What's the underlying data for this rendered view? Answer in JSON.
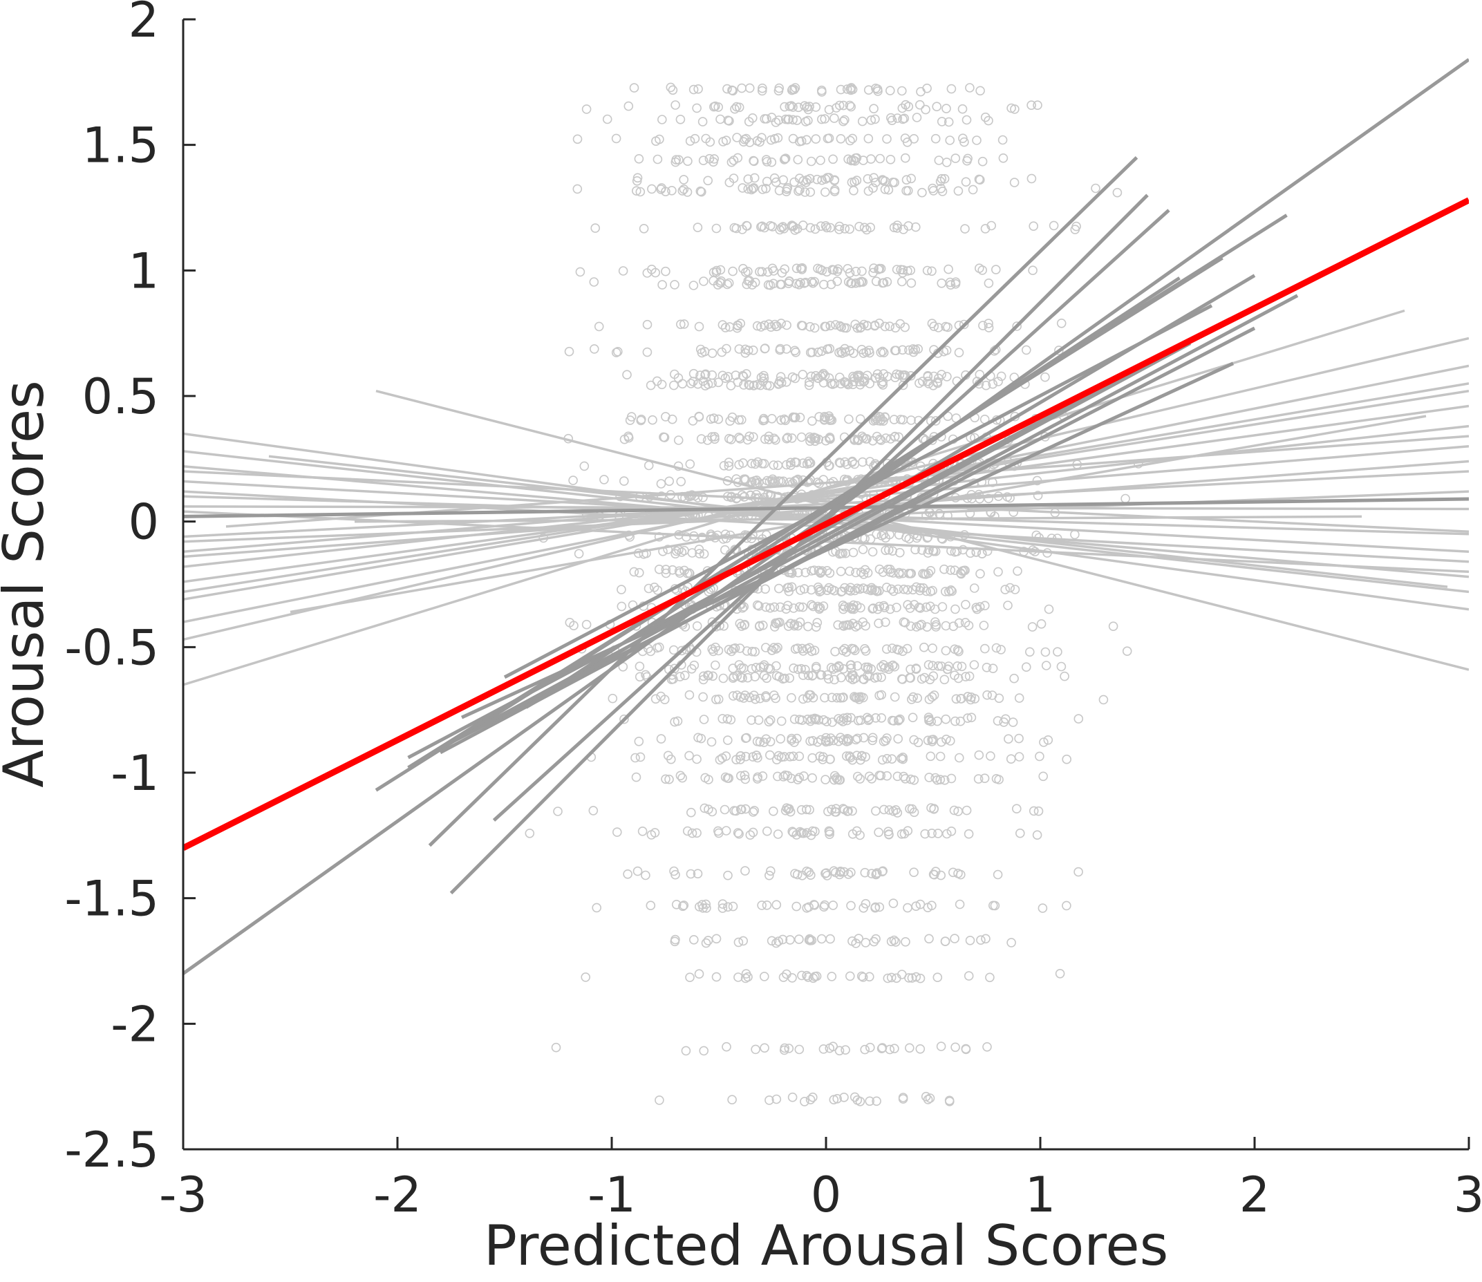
{
  "chart_data": {
    "type": "scatter",
    "title": "",
    "xlabel": "Predicted Arousal Scores",
    "ylabel": "Arousal Scores",
    "xlim": [
      -3,
      3
    ],
    "ylim": [
      -2.5,
      2
    ],
    "xticks": [
      -3,
      -2,
      -1,
      0,
      1,
      2,
      3
    ],
    "yticks": [
      -2.5,
      -2,
      -1.5,
      -1,
      -0.5,
      0,
      0.5,
      1,
      1.5,
      2
    ],
    "xtick_labels": [
      "-3",
      "-2",
      "-1",
      "0",
      "1",
      "2",
      "3"
    ],
    "ytick_labels": [
      "-2.5",
      "-2",
      "-1.5",
      "-1",
      "-0.5",
      "0",
      "0.5",
      "1",
      "1.5",
      "2"
    ],
    "grid": false,
    "legend": "none",
    "colors": {
      "points": "#c8c8c8",
      "light_fit_lines": "#c4c4c4",
      "dark_fit_lines": "#999999",
      "group_fit": "#ff0000",
      "axes": "#262626"
    },
    "score_levels": [
      -2.3,
      -2.1,
      -1.81,
      -1.67,
      -1.53,
      -1.4,
      -1.24,
      -1.15,
      -1.02,
      -0.94,
      -0.87,
      -0.79,
      -0.7,
      -0.62,
      -0.58,
      -0.51,
      -0.41,
      -0.34,
      -0.27,
      -0.2,
      -0.12,
      -0.06,
      0.03,
      0.1,
      0.16,
      0.23,
      0.33,
      0.41,
      0.55,
      0.58,
      0.68,
      0.78,
      0.95,
      1.0,
      1.17,
      1.32,
      1.36,
      1.44,
      1.52,
      1.6,
      1.65,
      1.72
    ],
    "scatter_summary": "individual ratings plotted against predicted scores; points cluster on discrete score levels, mostly between x = -1.8 and x = 1.7",
    "group_fit": {
      "name": "group fit",
      "color": "#ff0000",
      "x": [
        -3,
        3
      ],
      "y": [
        -1.3,
        1.28
      ]
    },
    "individual_fits": [
      {
        "tone": "dark",
        "x": [
          -3,
          3
        ],
        "y": [
          -1.8,
          1.84
        ]
      },
      {
        "tone": "dark",
        "x": [
          -3,
          3
        ],
        "y": [
          0.02,
          0.09
        ]
      },
      {
        "tone": "dark",
        "x": [
          -1.85,
          1.45
        ],
        "y": [
          -1.29,
          1.45
        ]
      },
      {
        "tone": "dark",
        "x": [
          -1.75,
          1.5
        ],
        "y": [
          -1.48,
          1.3
        ]
      },
      {
        "tone": "dark",
        "x": [
          -1.55,
          1.6
        ],
        "y": [
          -1.19,
          1.24
        ]
      },
      {
        "tone": "dark",
        "x": [
          -2.1,
          2.15
        ],
        "y": [
          -1.07,
          1.22
        ]
      },
      {
        "tone": "dark",
        "x": [
          -1.95,
          1.85
        ],
        "y": [
          -0.98,
          1.05
        ]
      },
      {
        "tone": "dark",
        "x": [
          -1.95,
          2.15
        ],
        "y": [
          -0.94,
          0.92
        ]
      },
      {
        "tone": "dark",
        "x": [
          -1.8,
          2.2
        ],
        "y": [
          -0.92,
          0.9
        ]
      },
      {
        "tone": "dark",
        "x": [
          -1.75,
          2.0
        ],
        "y": [
          -0.88,
          0.77
        ]
      },
      {
        "tone": "dark",
        "x": [
          -1.6,
          1.7
        ],
        "y": [
          -0.81,
          0.71
        ]
      },
      {
        "tone": "dark",
        "x": [
          -1.7,
          1.9
        ],
        "y": [
          -0.78,
          0.63
        ]
      },
      {
        "tone": "dark",
        "x": [
          -1.5,
          1.8
        ],
        "y": [
          -0.62,
          0.86
        ]
      },
      {
        "tone": "dark",
        "x": [
          -1.35,
          1.65
        ],
        "y": [
          -0.71,
          0.97
        ]
      },
      {
        "tone": "dark",
        "x": [
          -1.4,
          2.0
        ],
        "y": [
          -0.74,
          0.98
        ]
      },
      {
        "tone": "light",
        "x": [
          -2.1,
          3
        ],
        "y": [
          0.52,
          -0.59
        ]
      },
      {
        "tone": "light",
        "x": [
          -3,
          2.7
        ],
        "y": [
          -0.65,
          0.84
        ]
      },
      {
        "tone": "light",
        "x": [
          -3,
          3
        ],
        "y": [
          0.35,
          -0.35
        ]
      },
      {
        "tone": "light",
        "x": [
          -3,
          3
        ],
        "y": [
          -0.47,
          0.73
        ]
      },
      {
        "tone": "light",
        "x": [
          -3,
          3
        ],
        "y": [
          0.28,
          -0.28
        ]
      },
      {
        "tone": "light",
        "x": [
          -3,
          3
        ],
        "y": [
          -0.4,
          0.62
        ]
      },
      {
        "tone": "light",
        "x": [
          -3,
          3
        ],
        "y": [
          0.22,
          -0.22
        ]
      },
      {
        "tone": "light",
        "x": [
          -3,
          3
        ],
        "y": [
          -0.31,
          0.55
        ]
      },
      {
        "tone": "light",
        "x": [
          -3,
          3
        ],
        "y": [
          0.16,
          -0.12
        ]
      },
      {
        "tone": "light",
        "x": [
          -3,
          3
        ],
        "y": [
          -0.24,
          0.46
        ]
      },
      {
        "tone": "light",
        "x": [
          -3,
          3
        ],
        "y": [
          0.1,
          -0.05
        ]
      },
      {
        "tone": "light",
        "x": [
          -3,
          3
        ],
        "y": [
          -0.18,
          0.38
        ]
      },
      {
        "tone": "light",
        "x": [
          -3,
          3
        ],
        "y": [
          -0.12,
          0.3
        ]
      },
      {
        "tone": "light",
        "x": [
          -3,
          3
        ],
        "y": [
          0.06,
          0.05
        ]
      },
      {
        "tone": "light",
        "x": [
          -3,
          3
        ],
        "y": [
          -0.06,
          0.2
        ]
      },
      {
        "tone": "light",
        "x": [
          -3,
          3
        ],
        "y": [
          -0.08,
          0.12
        ]
      },
      {
        "tone": "light",
        "x": [
          -3,
          3
        ],
        "y": [
          0.04,
          -0.2
        ]
      },
      {
        "tone": "light",
        "x": [
          -3,
          3
        ],
        "y": [
          -0.14,
          0.24
        ]
      },
      {
        "tone": "light",
        "x": [
          -3,
          3
        ],
        "y": [
          0.12,
          -0.16
        ]
      },
      {
        "tone": "light",
        "x": [
          -3,
          3
        ],
        "y": [
          -0.28,
          0.52
        ]
      },
      {
        "tone": "light",
        "x": [
          -3,
          3
        ],
        "y": [
          0.2,
          -0.04
        ]
      },
      {
        "tone": "light",
        "x": [
          -2.5,
          2.8
        ],
        "y": [
          -0.36,
          0.42
        ]
      },
      {
        "tone": "light",
        "x": [
          -2.6,
          2.9
        ],
        "y": [
          0.26,
          -0.26
        ]
      },
      {
        "tone": "light",
        "x": [
          -2.8,
          3
        ],
        "y": [
          -0.02,
          0.34
        ]
      },
      {
        "tone": "light",
        "x": [
          -2.2,
          2.5
        ],
        "y": [
          0.0,
          0.02
        ]
      }
    ]
  }
}
